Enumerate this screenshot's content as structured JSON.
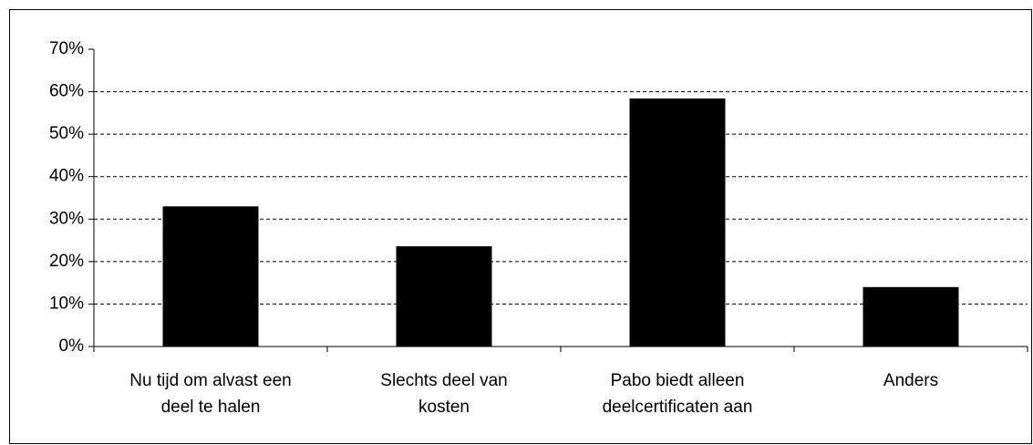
{
  "chart_data": {
    "type": "bar",
    "categories": [
      [
        "Nu tijd om alvast een",
        "deel te halen"
      ],
      [
        "Slechts deel van",
        "kosten"
      ],
      [
        "Pabo biedt alleen",
        "deelcertificaten aan"
      ],
      [
        "Anders"
      ]
    ],
    "values": [
      33,
      23.6,
      58.4,
      14
    ],
    "color": "#000000",
    "ylim": [
      0,
      70
    ],
    "yticks": [
      {
        "value": 0,
        "label": "0%"
      },
      {
        "value": 10,
        "label": "10%"
      },
      {
        "value": 20,
        "label": "20%"
      },
      {
        "value": 30,
        "label": "30%"
      },
      {
        "value": 40,
        "label": "40%"
      },
      {
        "value": 50,
        "label": "50%"
      },
      {
        "value": 60,
        "label": "60%"
      },
      {
        "value": 70,
        "label": "70%"
      }
    ],
    "grid": true
  }
}
